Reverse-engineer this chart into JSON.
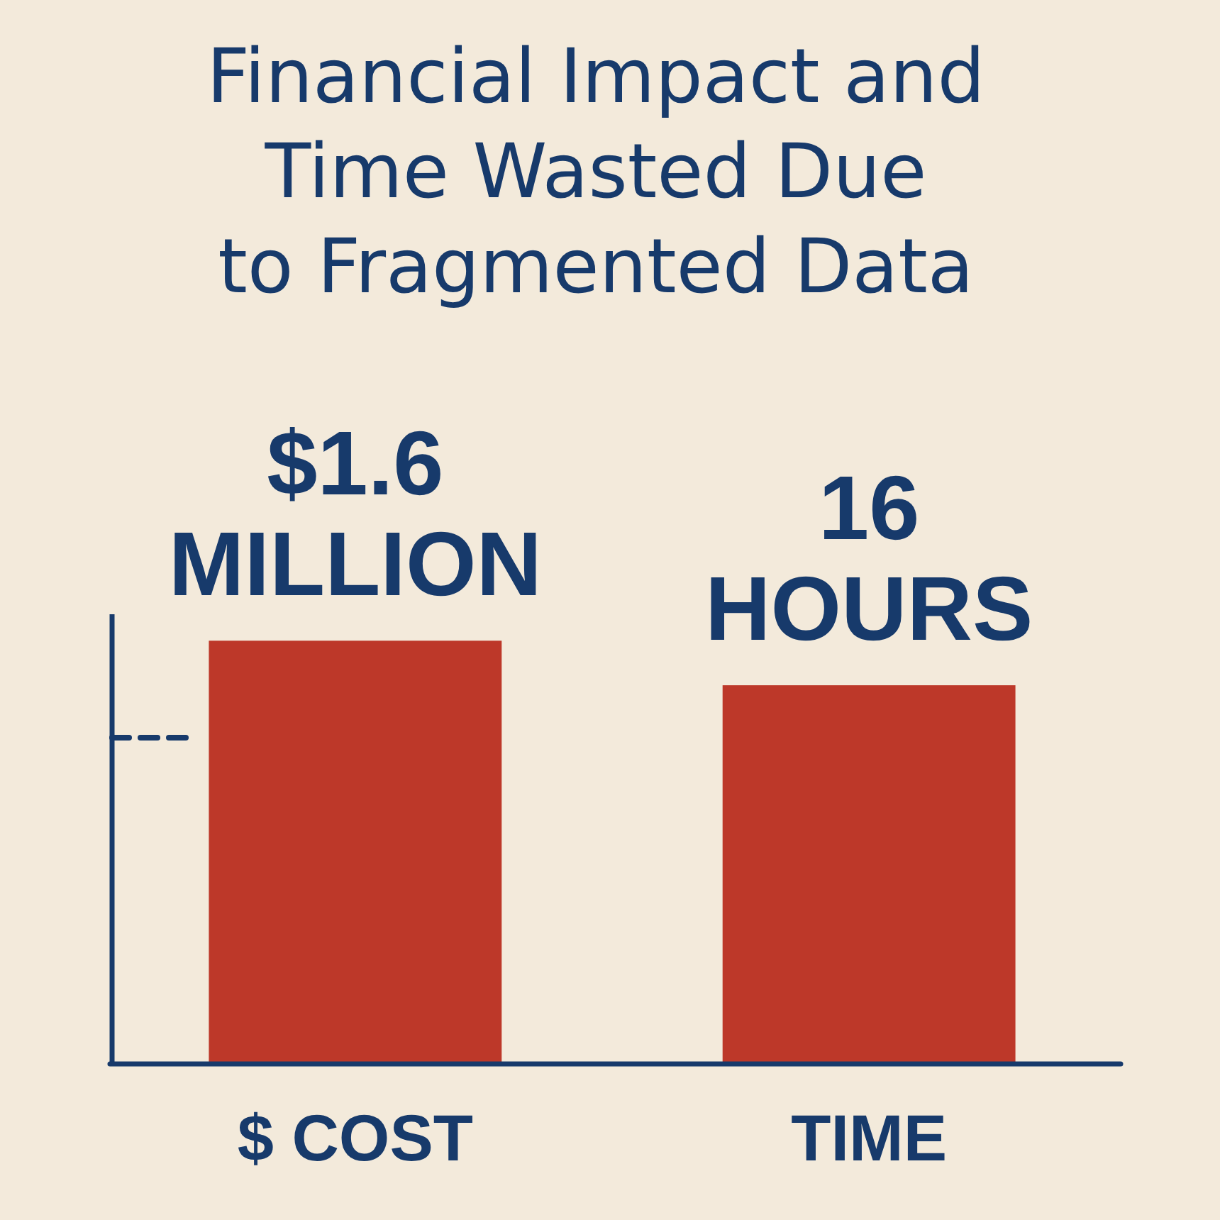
{
  "chart_data": {
    "type": "bar",
    "title": "Financial Impact and\nTime Wasted Due\nto Fragmented Data",
    "categories": [
      "$ COST",
      "TIME"
    ],
    "series": [
      {
        "color": "#bd3829",
        "values": [
          1.6,
          null
        ],
        "value_labels": [
          "$1.6\nMILLION",
          null
        ]
      },
      {
        "color": "#bd3829",
        "values": [
          null,
          16
        ],
        "value_labels": [
          null,
          "16\nHOURS"
        ],
        "axis": "y2"
      }
    ],
    "ylim": [
      0,
      1.7
    ],
    "y2lim": [
      0,
      19
    ],
    "tick_labels": "x"
  }
}
